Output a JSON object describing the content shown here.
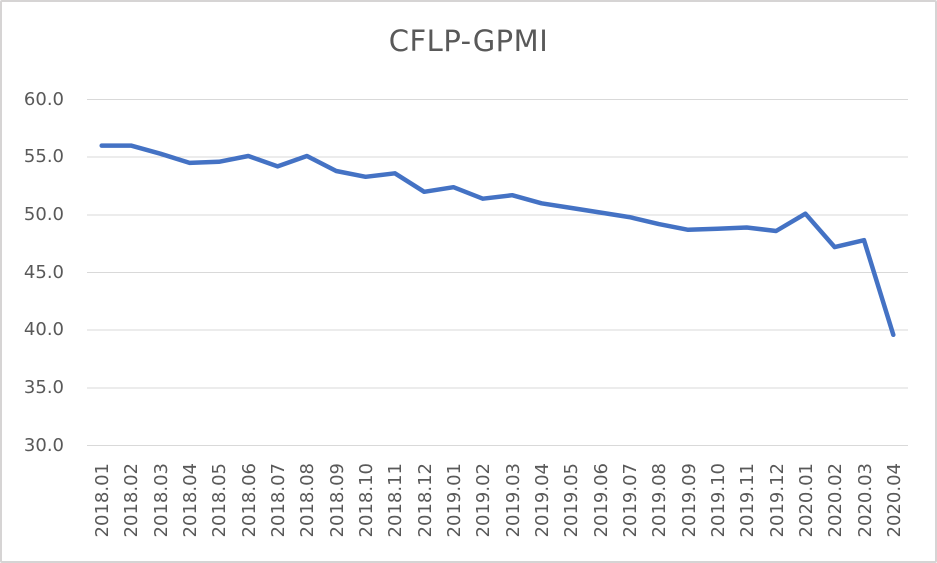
{
  "chart_data": {
    "type": "line",
    "title": "CFLP-GPMI",
    "categories": [
      "2018.01",
      "2018.02",
      "2018.03",
      "2018.04",
      "2018.05",
      "2018.06",
      "2018.07",
      "2018.08",
      "2018.09",
      "2018.10",
      "2018.11",
      "2018.12",
      "2019.01",
      "2019.02",
      "2019.03",
      "2019.04",
      "2019.05",
      "2019.06",
      "2019.07",
      "2019.08",
      "2019.09",
      "2019.10",
      "2019.11",
      "2019.12",
      "2020.01",
      "2020.02",
      "2020.03",
      "2020.04"
    ],
    "series": [
      {
        "name": "CFLP-GPMI",
        "values": [
          56.0,
          56.0,
          55.3,
          54.5,
          54.6,
          55.1,
          54.2,
          55.1,
          53.8,
          53.3,
          53.6,
          52.0,
          52.4,
          51.4,
          51.7,
          51.0,
          50.6,
          50.2,
          49.8,
          49.2,
          48.7,
          48.8,
          48.9,
          48.6,
          50.1,
          47.2,
          47.8,
          39.6
        ]
      }
    ],
    "xlabel": "",
    "ylabel": "",
    "ylim": [
      30.0,
      60.0
    ],
    "ytick_step": 5.0,
    "yticks": [
      "60.0",
      "55.0",
      "50.0",
      "45.0",
      "40.0",
      "35.0",
      "30.0"
    ],
    "grid": "horizontal",
    "legend_position": "none",
    "colors": {
      "line": "#4472C4",
      "gridline": "#D9D9D9",
      "text": "#595959",
      "border": "#D6D4D4",
      "background": "#FFFFFF"
    }
  }
}
